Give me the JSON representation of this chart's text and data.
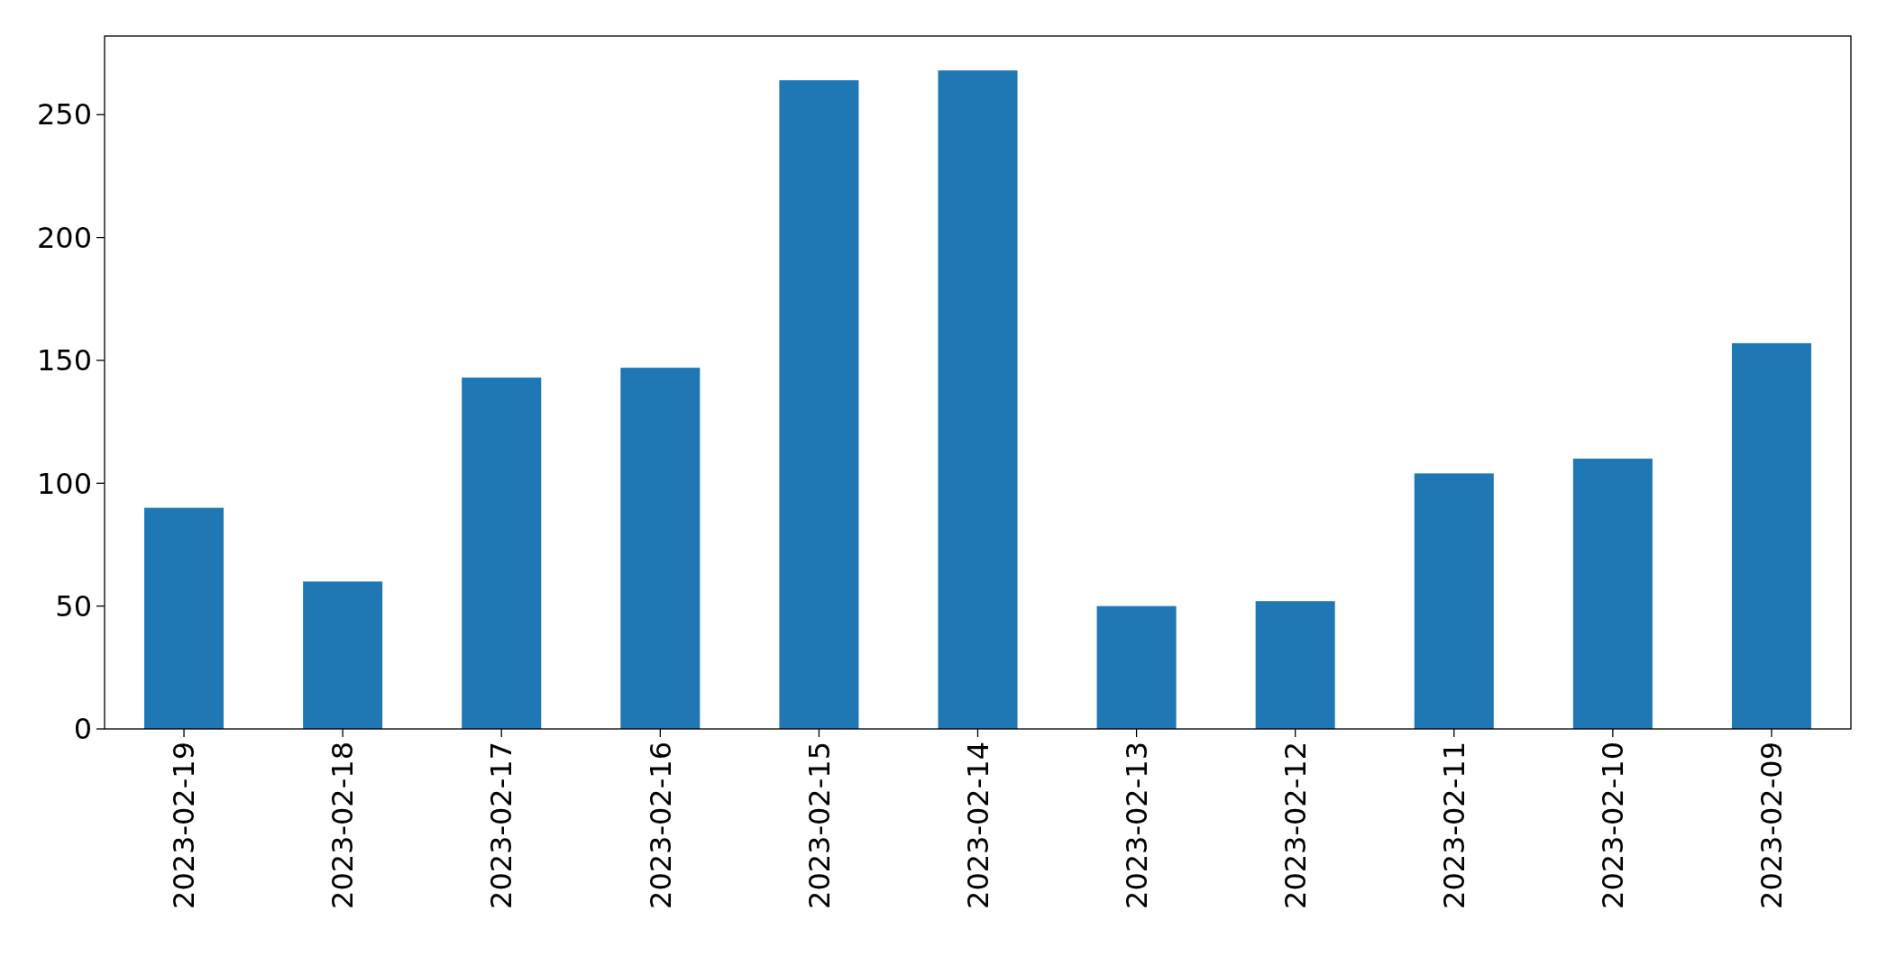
{
  "chart_data": {
    "type": "bar",
    "categories": [
      "2023-02-19",
      "2023-02-18",
      "2023-02-17",
      "2023-02-16",
      "2023-02-15",
      "2023-02-14",
      "2023-02-13",
      "2023-02-12",
      "2023-02-11",
      "2023-02-10",
      "2023-02-09"
    ],
    "values": [
      90,
      60,
      143,
      147,
      264,
      268,
      50,
      52,
      104,
      110,
      157
    ],
    "color": "#1f77b4",
    "ylim": [
      0,
      282
    ],
    "yticks": [
      0,
      50,
      100,
      150,
      200,
      250
    ],
    "grid": false
  }
}
